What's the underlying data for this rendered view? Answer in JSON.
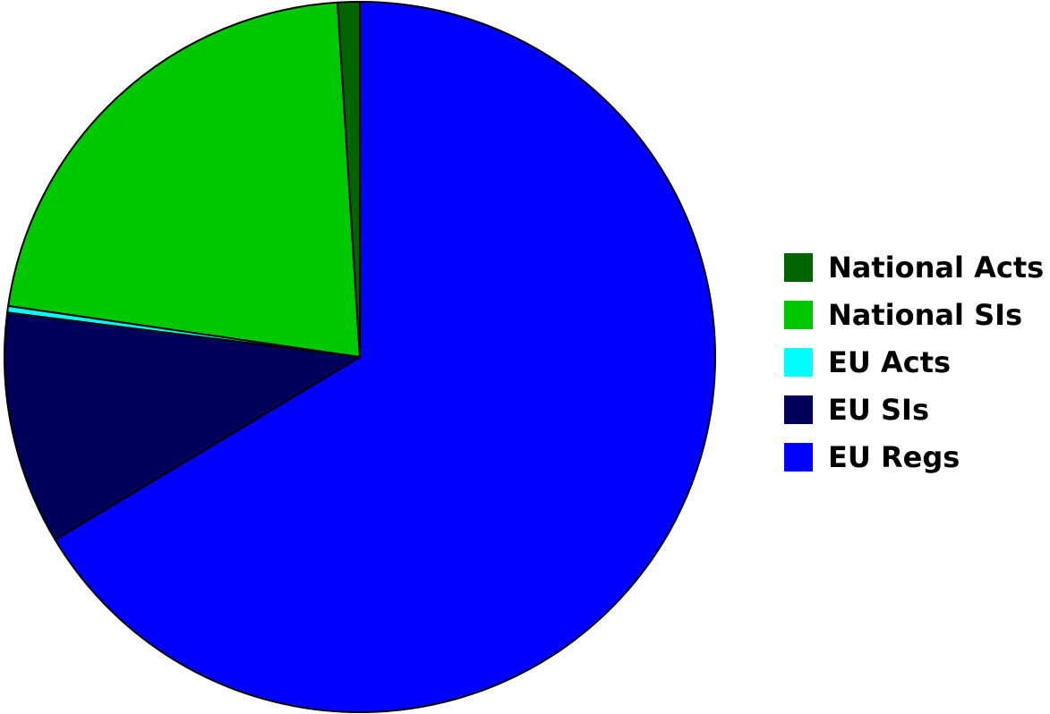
{
  "chart_data": {
    "type": "pie",
    "start_angle_degrees": -90,
    "direction": "clockwise",
    "legend_position": "right",
    "slices": [
      {
        "label": "EU Regs",
        "value": 66.4,
        "color": "#0000ff"
      },
      {
        "label": "EU SIs",
        "value": 10.6,
        "color": "#00005a"
      },
      {
        "label": "EU Acts",
        "value": 0.3,
        "color": "#00ffff"
      },
      {
        "label": "National SIs",
        "value": 21.7,
        "color": "#00c800"
      },
      {
        "label": "National Acts",
        "value": 1.0,
        "color": "#006400"
      }
    ],
    "legend_order": [
      "National Acts",
      "National SIs",
      "EU Acts",
      "EU SIs",
      "EU Regs"
    ]
  }
}
